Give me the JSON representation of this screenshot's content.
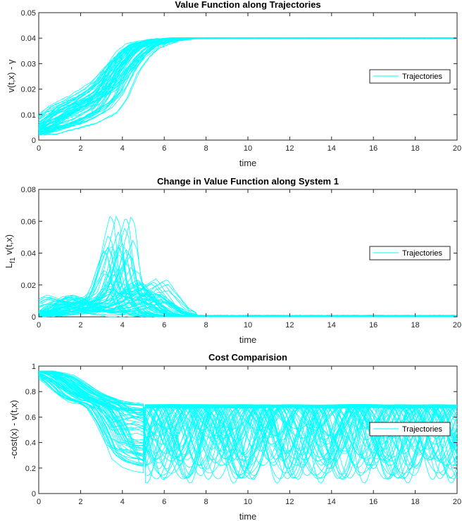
{
  "chart_data": [
    {
      "type": "line",
      "title": "Value Function along Trajectories",
      "xlabel": "time",
      "ylabel": "v(t,x) - γ",
      "xlim": [
        0,
        20
      ],
      "ylim": [
        0,
        0.05
      ],
      "xticks": [
        "0",
        "2",
        "4",
        "6",
        "8",
        "10",
        "12",
        "14",
        "16",
        "18",
        "20"
      ],
      "yticks": [
        "0",
        "0.01",
        "0.02",
        "0.03",
        "0.04",
        "0.05"
      ],
      "legend": {
        "placement": "right",
        "entries": [
          "Trajectories"
        ]
      },
      "series_color": "#00FFFF",
      "grid": false,
      "representative_series": [
        {
          "x": [
            0,
            1,
            2,
            3,
            3.5,
            4,
            4.5,
            5,
            6,
            7,
            8,
            10,
            12,
            14,
            16,
            18,
            20
          ],
          "y": [
            0.004,
            0.008,
            0.012,
            0.018,
            0.022,
            0.029,
            0.035,
            0.038,
            0.0395,
            0.04,
            0.04,
            0.04,
            0.04,
            0.04,
            0.04,
            0.04,
            0.04
          ]
        },
        {
          "x": [
            0,
            1,
            2,
            3,
            3.5,
            4,
            4.5,
            5,
            6,
            7,
            8,
            10,
            12,
            14,
            16,
            18,
            20
          ],
          "y": [
            0.005,
            0.015,
            0.019,
            0.024,
            0.028,
            0.031,
            0.034,
            0.037,
            0.0395,
            0.04,
            0.04,
            0.04,
            0.04,
            0.04,
            0.04,
            0.04,
            0.04
          ]
        },
        {
          "x": [
            0,
            1,
            2,
            3,
            3.5,
            4,
            4.5,
            5,
            6,
            7,
            8,
            10,
            12,
            14,
            16,
            18,
            20
          ],
          "y": [
            0.002,
            0.004,
            0.006,
            0.01,
            0.016,
            0.026,
            0.032,
            0.036,
            0.039,
            0.04,
            0.04,
            0.04,
            0.04,
            0.04,
            0.04,
            0.04,
            0.04
          ]
        }
      ]
    },
    {
      "type": "line",
      "title": "Change in Value Function along System 1",
      "xlabel": "time",
      "ylabel": "L_f1 v(t,x)",
      "ylabel_main": "L",
      "ylabel_sub": "f1",
      "ylabel_rest": " v(t,x)",
      "xlim": [
        0,
        20
      ],
      "ylim": [
        0,
        0.08
      ],
      "xticks": [
        "0",
        "2",
        "4",
        "6",
        "8",
        "10",
        "12",
        "14",
        "16",
        "18",
        "20"
      ],
      "yticks": [
        "0",
        "0.02",
        "0.04",
        "0.06",
        "0.08"
      ],
      "legend": {
        "placement": "right",
        "entries": [
          "Trajectories"
        ]
      },
      "series_color": "#00FFFF",
      "grid": false,
      "representative_series": [
        {
          "x": [
            0,
            0.5,
            1,
            1.5,
            2,
            2.5,
            3,
            3.5,
            4,
            4.5,
            5,
            5.5,
            6,
            6.5,
            7,
            8,
            10,
            20
          ],
          "y": [
            0.004,
            0.01,
            0.014,
            0.012,
            0.008,
            0.004,
            0.002,
            0.001,
            0.0,
            0.0,
            0.0,
            0.0,
            0.0,
            0.0,
            0.0,
            0.0,
            0.0,
            0.0
          ]
        },
        {
          "x": [
            0,
            0.5,
            1,
            1.5,
            2,
            2.5,
            3,
            3.3,
            3.6,
            3.9,
            4.1,
            4.3,
            4.6,
            5,
            5.5,
            6,
            7,
            8,
            20
          ],
          "y": [
            0.001,
            0.002,
            0.004,
            0.006,
            0.009,
            0.012,
            0.016,
            0.03,
            0.05,
            0.066,
            0.058,
            0.03,
            0.012,
            0.006,
            0.002,
            0.001,
            0.0,
            0.0,
            0.0
          ]
        },
        {
          "x": [
            0,
            1,
            2,
            3,
            4,
            4.5,
            5,
            5.5,
            6,
            6.5,
            7,
            7.5,
            8,
            20
          ],
          "y": [
            0.0,
            0.001,
            0.002,
            0.005,
            0.01,
            0.014,
            0.02,
            0.024,
            0.015,
            0.006,
            0.002,
            0.001,
            0.0,
            0.0
          ]
        }
      ]
    },
    {
      "type": "line",
      "title": "Cost Comparision",
      "xlabel": "time",
      "ylabel": "-cost(x) - v(t,x)",
      "xlim": [
        0,
        20
      ],
      "ylim": [
        0,
        1
      ],
      "xticks": [
        "0",
        "2",
        "4",
        "6",
        "8",
        "10",
        "12",
        "14",
        "16",
        "18",
        "20"
      ],
      "yticks": [
        "0",
        "0.2",
        "0.4",
        "0.6",
        "0.8",
        "1"
      ],
      "legend": {
        "placement": "right",
        "entries": [
          "Trajectories"
        ]
      },
      "series_color": "#00FFFF",
      "grid": false,
      "representative_series": [
        {
          "x": [
            0,
            0.5,
            1,
            1.5,
            2,
            2.5,
            3,
            4,
            5,
            6,
            8,
            10,
            12,
            14,
            16,
            18,
            20
          ],
          "y": [
            0.96,
            0.95,
            0.93,
            0.88,
            0.82,
            0.77,
            0.74,
            0.72,
            0.7,
            0.69,
            0.69,
            0.69,
            0.69,
            0.69,
            0.69,
            0.69,
            0.69
          ]
        },
        {
          "x": [
            0,
            0.5,
            1,
            1.5,
            2,
            2.5,
            3,
            3.5,
            4,
            4.5,
            5,
            6,
            7,
            8,
            10,
            12,
            14,
            16,
            18,
            20
          ],
          "y": [
            0.96,
            0.93,
            0.85,
            0.76,
            0.71,
            0.7,
            0.65,
            0.48,
            0.25,
            0.18,
            0.15,
            0.12,
            0.1,
            0.08,
            0.08,
            0.08,
            0.08,
            0.08,
            0.08,
            0.08
          ]
        },
        {
          "x": [
            0,
            1,
            2,
            3,
            4,
            5,
            6,
            7,
            8,
            9,
            10,
            11,
            12,
            13,
            14,
            15,
            16,
            17,
            18,
            19,
            20
          ],
          "y": [
            0.96,
            0.9,
            0.8,
            0.74,
            0.55,
            0.6,
            0.52,
            0.66,
            0.5,
            0.3,
            0.6,
            0.2,
            0.55,
            0.4,
            0.65,
            0.15,
            0.5,
            0.6,
            0.25,
            0.55,
            0.45
          ]
        }
      ]
    }
  ]
}
